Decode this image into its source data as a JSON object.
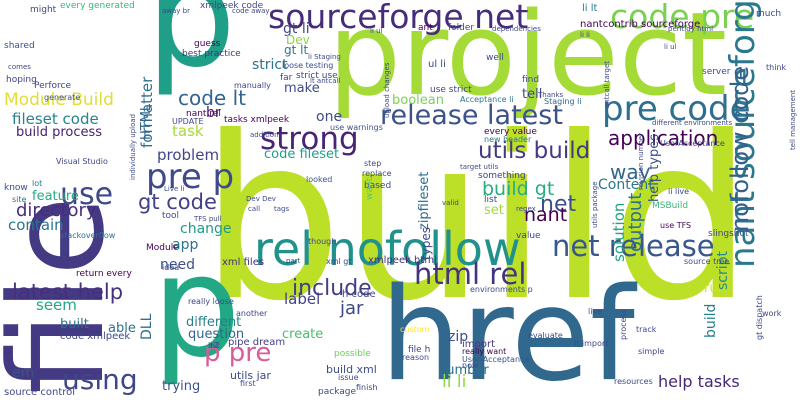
{
  "words": [
    {
      "text": "build",
      "color": "#bcdf27"
    },
    {
      "text": "href",
      "color": "#31688e"
    },
    {
      "text": "project",
      "color": "#a5db36"
    },
    {
      "text": "file",
      "color": "#443983"
    },
    {
      "text": "p",
      "color": "#1f9f88"
    },
    {
      "text": "p",
      "color": "#22a884"
    },
    {
      "text": "rel nofollow",
      "color": "#21918c"
    },
    {
      "text": "sourceforge net",
      "color": "#472c7a"
    },
    {
      "text": "code pre",
      "color": "#7ad151"
    },
    {
      "text": "release latest",
      "color": "#3b528b"
    },
    {
      "text": "pre code",
      "color": "#2d708e"
    },
    {
      "text": "net release",
      "color": "#38588c"
    },
    {
      "text": "html rel",
      "color": "#46337f"
    },
    {
      "text": "nant sourceforge",
      "color": "#2a788e"
    },
    {
      "text": "strong",
      "color": "#482475"
    },
    {
      "text": "pre p",
      "color": "#3e4a89"
    },
    {
      "text": "p pre",
      "color": "#da5b9a"
    },
    {
      "text": "using",
      "color": "#3f4788"
    },
    {
      "text": "use",
      "color": "#3e4989"
    },
    {
      "text": "code lt",
      "color": "#32648e"
    },
    {
      "text": "Module Build",
      "color": "#e1dd37"
    },
    {
      "text": "fileset code",
      "color": "#25848e"
    },
    {
      "text": "build process",
      "color": "#482071"
    },
    {
      "text": "utils build",
      "color": "#443a83"
    },
    {
      "text": "application",
      "color": "#440154"
    },
    {
      "text": "nofollow code",
      "color": "#34608d"
    },
    {
      "text": "build gt",
      "color": "#27ad81"
    },
    {
      "text": "gt code",
      "color": "#424086"
    },
    {
      "text": "directory",
      "color": "#472d7b"
    },
    {
      "text": "latest help",
      "color": "#46307e"
    },
    {
      "text": "include",
      "color": "#433d84"
    },
    {
      "text": "net",
      "color": "#3c4f8a"
    },
    {
      "text": "nant",
      "color": "#440154"
    },
    {
      "text": "problem",
      "color": "#414487"
    },
    {
      "text": "task",
      "color": "#a8db34"
    },
    {
      "text": "strict",
      "color": "#2c738e"
    },
    {
      "text": "gt li",
      "color": "#3f4889"
    },
    {
      "text": "br",
      "color": "#481467"
    },
    {
      "text": "feature",
      "color": "#25ab82"
    },
    {
      "text": "contain",
      "color": "#2a778e"
    },
    {
      "text": "seem",
      "color": "#22a785"
    },
    {
      "text": "label",
      "color": "#414287"
    },
    {
      "text": "jar",
      "color": "#3f4788"
    },
    {
      "text": "output",
      "color": "#2d718e"
    },
    {
      "text": "solution",
      "color": "#20a386"
    },
    {
      "text": "help tasks",
      "color": "#482677"
    },
    {
      "text": "li li",
      "color": "#8fd744"
    },
    {
      "text": "em",
      "color": "#3b528b"
    },
    {
      "text": "way",
      "color": "#31678e"
    },
    {
      "text": "formatter",
      "color": "#2e6f8e"
    },
    {
      "text": "one",
      "color": "#3e4c8a"
    },
    {
      "text": "Content",
      "color": "#2a788e"
    },
    {
      "text": "change",
      "color": "#1f998a"
    },
    {
      "text": "need",
      "color": "#3b518b"
    },
    {
      "text": "app",
      "color": "#2b748e"
    },
    {
      "text": "different",
      "color": "#277f8e"
    },
    {
      "text": "question",
      "color": "#31668e"
    },
    {
      "text": "create",
      "color": "#46c06f"
    },
    {
      "text": "trying",
      "color": "#3b528b"
    },
    {
      "text": "built",
      "color": "#2c728e"
    },
    {
      "text": "able",
      "color": "#2d718e"
    },
    {
      "text": "set",
      "color": "#a0da39"
    },
    {
      "text": "run",
      "color": "#d5e21a"
    },
    {
      "text": "zip",
      "color": "#3c508b"
    },
    {
      "text": "number",
      "color": "#2d708e"
    },
    {
      "text": "script",
      "color": "#238a8d"
    },
    {
      "text": "build",
      "color": "#26818e"
    },
    {
      "text": "DLL",
      "color": "#2e6e8e"
    },
    {
      "text": "tell",
      "color": "#404688"
    },
    {
      "text": "boolean",
      "color": "#7ad151"
    },
    {
      "text": "code fileset",
      "color": "#1fa188"
    },
    {
      "text": "HTML",
      "color": "#31678e"
    },
    {
      "text": "make",
      "color": "#3d4d8a"
    },
    {
      "text": "Dev",
      "color": "#8bd646"
    },
    {
      "text": "gt lt",
      "color": "#2a788e"
    },
    {
      "text": "help types",
      "color": "#3b528b"
    },
    {
      "text": "zipfileset",
      "color": "#2f6b8e"
    },
    {
      "text": "types",
      "color": "#3e4a89"
    },
    {
      "text": "utils jar",
      "color": "#3e4989"
    },
    {
      "text": "build xml",
      "color": "#3e4c8a"
    },
    {
      "text": "h code",
      "color": "#404588"
    },
    {
      "text": "import",
      "color": "#453882"
    },
    {
      "text": "pipe dream",
      "color": "#433e85"
    },
    {
      "text": "xml files",
      "color": "#46327e"
    },
    {
      "text": "xmlpeek html",
      "color": "#472f7d"
    },
    {
      "text": "source control",
      "color": "#3f4788"
    },
    {
      "text": "tasks xmlpeek",
      "color": "#440154"
    },
    {
      "text": "li lt",
      "color": "#2a788e"
    },
    {
      "text": "nantcontrib sourceforge",
      "color": "#440154"
    },
    {
      "text": "code xmlpeek",
      "color": "#3f4788"
    },
    {
      "text": "guess",
      "color": "#440154"
    },
    {
      "text": "best practice",
      "color": "#46337f"
    },
    {
      "text": "xmlpeek code",
      "color": "#3f4788"
    },
    {
      "text": "every generated",
      "color": "#35b779"
    },
    {
      "text": "might",
      "color": "#3e4989"
    },
    {
      "text": "shared",
      "color": "#3b528b"
    },
    {
      "text": "hoping",
      "color": "#414487"
    },
    {
      "text": "know",
      "color": "#3d4d8a"
    },
    {
      "text": "lot",
      "color": "#2a788e"
    },
    {
      "text": "site",
      "color": "#2c728e"
    },
    {
      "text": "manually",
      "color": "#414487"
    },
    {
      "text": "Visual Studio",
      "color": "#3f4889"
    },
    {
      "text": "stackoverflow",
      "color": "#2d708e"
    },
    {
      "text": "Perforce",
      "color": "#404688"
    },
    {
      "text": "generate",
      "color": "#3b528b"
    },
    {
      "text": "custom",
      "color": "#fde725"
    },
    {
      "text": "nant rel",
      "color": "#440154"
    },
    {
      "text": "UPDATE",
      "color": "#3e4989"
    },
    {
      "text": "far",
      "color": "#3f4788"
    },
    {
      "text": "strict use",
      "color": "#3f4889"
    },
    {
      "text": "loose testing",
      "color": "#3e4989"
    },
    {
      "text": "use warnings",
      "color": "#3b528b"
    },
    {
      "text": "Staging li",
      "color": "#31688e"
    },
    {
      "text": "ant",
      "color": "#440154"
    },
    {
      "text": "folder",
      "color": "#3f4788"
    },
    {
      "text": "well",
      "color": "#3e4989"
    },
    {
      "text": "find",
      "color": "#3b528b"
    },
    {
      "text": "use strict",
      "color": "#3f4788"
    },
    {
      "text": "Acceptance li",
      "color": "#2a788e"
    },
    {
      "text": "every value",
      "color": "#440154"
    },
    {
      "text": "new header",
      "color": "#2a788e"
    },
    {
      "text": "something",
      "color": "#414487"
    },
    {
      "text": "based",
      "color": "#3e4989"
    },
    {
      "text": "list",
      "color": "#3f4788"
    },
    {
      "text": "value",
      "color": "#414487"
    },
    {
      "text": "want",
      "color": "#5ec962"
    },
    {
      "text": "step",
      "color": "#3e4989"
    },
    {
      "text": "replace",
      "color": "#3f4788"
    },
    {
      "text": "looked",
      "color": "#3b528b"
    },
    {
      "text": "though",
      "color": "#3e4989"
    },
    {
      "text": "tool",
      "color": "#3e4989"
    },
    {
      "text": "Module",
      "color": "#440154"
    },
    {
      "text": "idea",
      "color": "#3f4788"
    },
    {
      "text": "another",
      "color": "#3f4788"
    },
    {
      "text": "really loose",
      "color": "#3e4989"
    },
    {
      "text": "h2",
      "color": "#3e4989"
    },
    {
      "text": "issue",
      "color": "#414487"
    },
    {
      "text": "finish",
      "color": "#3f4788"
    },
    {
      "text": "package",
      "color": "#3e4989"
    },
    {
      "text": "possible",
      "color": "#6ccd5a"
    },
    {
      "text": "return every",
      "color": "#440154"
    },
    {
      "text": "li User",
      "color": "#3e4989"
    },
    {
      "text": "source tree",
      "color": "#3f4788"
    },
    {
      "text": "slingshot",
      "color": "#3e4989"
    },
    {
      "text": "MSBuild",
      "color": "#35b779"
    },
    {
      "text": "UserAcceptance",
      "color": "#3e4989"
    },
    {
      "text": "use TFS",
      "color": "#440154"
    },
    {
      "text": "li live",
      "color": "#3f4788"
    },
    {
      "text": "file h",
      "color": "#414487"
    },
    {
      "text": "server",
      "color": "#3e4989"
    },
    {
      "text": "think",
      "color": "#3f4788"
    },
    {
      "text": "much",
      "color": "#3e4989"
    },
    {
      "text": "work",
      "color": "#3f4788"
    },
    {
      "text": "track",
      "color": "#3e4989"
    },
    {
      "text": "simple",
      "color": "#3e4989"
    },
    {
      "text": "lt import",
      "color": "#3e4989"
    },
    {
      "text": "evaluate",
      "color": "#3f4788"
    },
    {
      "text": "reason",
      "color": "#3e4989"
    },
    {
      "text": "really want",
      "color": "#440154"
    },
    {
      "text": "User Acceptance",
      "color": "#3b528b"
    },
    {
      "text": "now",
      "color": "#3e4989"
    },
    {
      "text": "resources",
      "color": "#3e4989"
    },
    {
      "text": "first",
      "color": "#3f4788"
    },
    {
      "text": "live",
      "color": "#3e4989"
    },
    {
      "text": "environments p",
      "color": "#3e4989"
    },
    {
      "text": "xml gt",
      "color": "#3f4788"
    },
    {
      "text": "h2",
      "color": "#3e4989"
    },
    {
      "text": "gt dispatch",
      "color": "#3e4989"
    },
    {
      "text": "tell management",
      "color": "#3e4989"
    },
    {
      "text": "Thanks",
      "color": "#3f4788"
    },
    {
      "text": "revision number",
      "color": "#3f4788"
    },
    {
      "text": "different environments",
      "color": "#3e4989"
    },
    {
      "text": "addition",
      "color": "#3e4989"
    },
    {
      "text": "individually upload",
      "color": "#3e4989"
    },
    {
      "text": "upload changes",
      "color": "#3f4788"
    },
    {
      "text": "li Staging",
      "color": "#3e4989"
    },
    {
      "text": "lt antcall",
      "color": "#3e4989"
    },
    {
      "text": "antcall target",
      "color": "#3e4989"
    },
    {
      "text": "target utils",
      "color": "#3e4989"
    },
    {
      "text": "regex",
      "color": "#3e4989"
    },
    {
      "text": "utils package",
      "color": "#3e4989"
    },
    {
      "text": "Dev Dev",
      "color": "#3e4989"
    },
    {
      "text": "TFS pull",
      "color": "#3e4989"
    },
    {
      "text": "tags",
      "color": "#3e4989"
    },
    {
      "text": "call",
      "color": "#3e4989"
    },
    {
      "text": "Live li",
      "color": "#3e4989"
    },
    {
      "text": "comes",
      "color": "#3e4989"
    },
    {
      "text": "away br",
      "color": "#3e4989"
    },
    {
      "text": "code away",
      "color": "#3e4989"
    },
    {
      "text": "valid",
      "color": "#3e4989"
    },
    {
      "text": "dependencies",
      "color": "#3e4989"
    },
    {
      "text": "perltidy html",
      "color": "#3e4989"
    },
    {
      "text": "process",
      "color": "#3e4989"
    },
    {
      "text": "part",
      "color": "#3e4989"
    },
    {
      "text": "li li",
      "color": "#3e4989"
    },
    {
      "text": "ul li",
      "color": "#3e4989"
    },
    {
      "text": "li ul",
      "color": "#3e4989"
    },
    {
      "text": "li ul",
      "color": "#3e4989"
    }
  ]
}
